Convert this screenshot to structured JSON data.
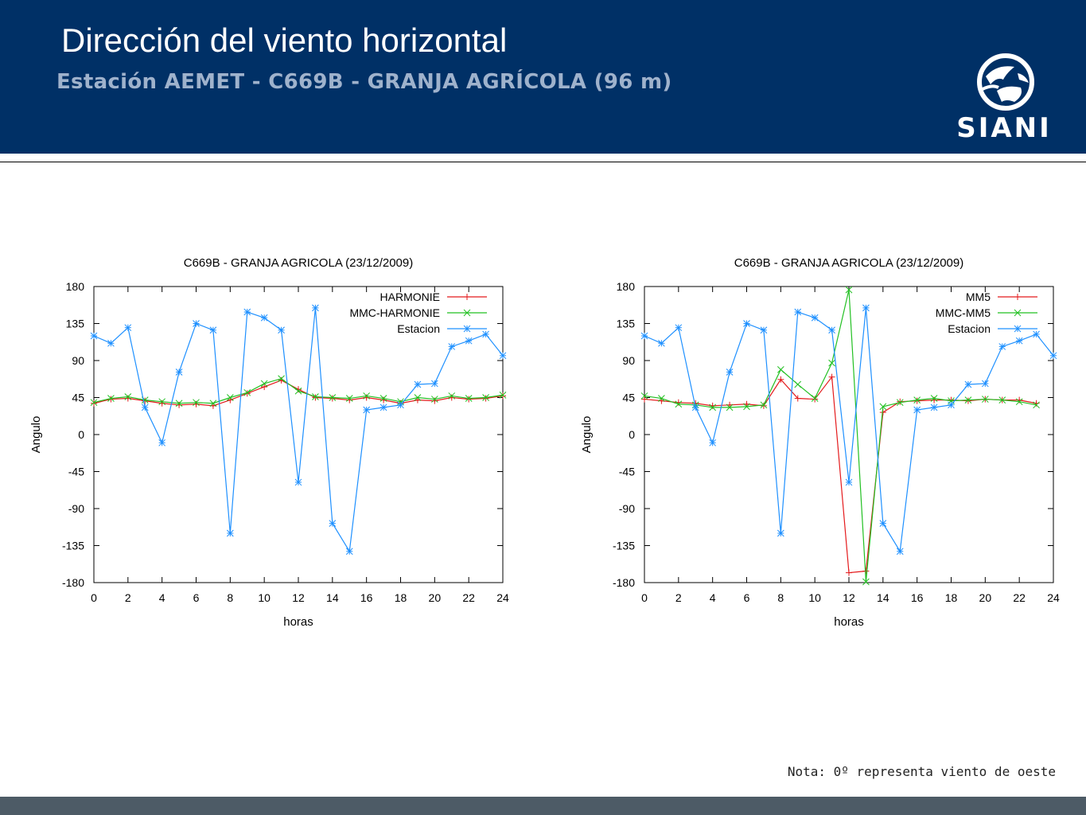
{
  "header": {
    "title": "Dirección del viento horizontal",
    "subtitle": "Estación AEMET - C669B - GRANJA AGRÍCOLA (96 m)",
    "logo_text": "SIANI",
    "background_color": "#003066"
  },
  "note": "Nota: 0º representa viento de oeste",
  "colors": {
    "red": "#e41a1c",
    "green": "#22c022",
    "blue": "#1e90ff",
    "footer": "#4d5b66"
  },
  "chart_data": [
    {
      "type": "line",
      "title": "C669B - GRANJA AGRICOLA (23/12/2009)",
      "xlabel": "horas",
      "ylabel": "Angulo",
      "xlim": [
        0,
        24
      ],
      "ylim": [
        -180,
        180
      ],
      "xticks": [
        0,
        2,
        4,
        6,
        8,
        10,
        12,
        14,
        16,
        18,
        20,
        22,
        24
      ],
      "yticks": [
        180,
        135,
        90,
        45,
        0,
        -45,
        -90,
        -135,
        -180
      ],
      "legend_position": "top-right",
      "grid": false,
      "series": [
        {
          "name": "HARMONIE",
          "color": "#e41a1c",
          "marker": "plus",
          "x": [
            0,
            1,
            2,
            3,
            4,
            5,
            6,
            7,
            8,
            9,
            10,
            11,
            12,
            13,
            14,
            15,
            16,
            17,
            18,
            19,
            20,
            21,
            22,
            23,
            24
          ],
          "y": [
            38,
            43,
            44,
            41,
            38,
            36,
            37,
            35,
            42,
            50,
            58,
            66,
            55,
            45,
            44,
            42,
            45,
            42,
            38,
            42,
            41,
            45,
            43,
            44,
            47
          ]
        },
        {
          "name": "MMC-HARMONIE",
          "color": "#22c022",
          "marker": "x",
          "x": [
            0,
            1,
            2,
            3,
            4,
            5,
            6,
            7,
            8,
            9,
            10,
            11,
            12,
            13,
            14,
            15,
            16,
            17,
            18,
            19,
            20,
            21,
            22,
            23,
            24
          ],
          "y": [
            39,
            44,
            46,
            42,
            40,
            38,
            39,
            38,
            45,
            51,
            62,
            68,
            53,
            46,
            45,
            44,
            47,
            44,
            40,
            45,
            43,
            47,
            44,
            45,
            48
          ]
        },
        {
          "name": "Estacion",
          "color": "#1e90ff",
          "marker": "star",
          "x": [
            0,
            1,
            2,
            3,
            4,
            5,
            6,
            7,
            8,
            9,
            10,
            11,
            12,
            13,
            14,
            15,
            16,
            17,
            18,
            19,
            20,
            21,
            22,
            23,
            24
          ],
          "y": [
            120,
            111,
            130,
            33,
            -10,
            76,
            135,
            127,
            -120,
            149,
            142,
            127,
            -58,
            154,
            -108,
            -142,
            30,
            33,
            36,
            61,
            62,
            107,
            114,
            122,
            96
          ]
        }
      ]
    },
    {
      "type": "line",
      "title": "C669B - GRANJA AGRICOLA (23/12/2009)",
      "xlabel": "horas",
      "ylabel": "Angulo",
      "xlim": [
        0,
        24
      ],
      "ylim": [
        -180,
        180
      ],
      "xticks": [
        0,
        2,
        4,
        6,
        8,
        10,
        12,
        14,
        16,
        18,
        20,
        22,
        24
      ],
      "yticks": [
        180,
        135,
        90,
        45,
        0,
        -45,
        -90,
        -135,
        -180
      ],
      "legend_position": "top-right",
      "grid": false,
      "series": [
        {
          "name": "MM5",
          "color": "#e41a1c",
          "marker": "plus",
          "x": [
            0,
            1,
            2,
            3,
            4,
            5,
            6,
            7,
            8,
            9,
            10,
            11,
            12,
            13,
            14,
            15,
            16,
            17,
            18,
            19,
            20,
            21,
            22,
            23
          ],
          "y": [
            43,
            41,
            39,
            38,
            35,
            36,
            37,
            35,
            67,
            44,
            43,
            70,
            -168,
            -166,
            27,
            40,
            41,
            42,
            42,
            41,
            43,
            42,
            42,
            38
          ]
        },
        {
          "name": "MMC-MM5",
          "color": "#22c022",
          "marker": "x",
          "x": [
            0,
            1,
            2,
            3,
            4,
            5,
            6,
            7,
            8,
            9,
            10,
            11,
            12,
            13,
            14,
            15,
            16,
            17,
            18,
            19,
            20,
            21,
            22,
            23
          ],
          "y": [
            47,
            44,
            37,
            36,
            33,
            33,
            34,
            36,
            79,
            61,
            44,
            87,
            176,
            -179,
            34,
            39,
            42,
            44,
            41,
            42,
            43,
            42,
            40,
            36
          ]
        },
        {
          "name": "Estacion",
          "color": "#1e90ff",
          "marker": "star",
          "x": [
            0,
            1,
            2,
            3,
            4,
            5,
            6,
            7,
            8,
            9,
            10,
            11,
            12,
            13,
            14,
            15,
            16,
            17,
            18,
            19,
            20,
            21,
            22,
            23,
            24
          ],
          "y": [
            120,
            111,
            130,
            33,
            -10,
            76,
            135,
            127,
            -120,
            149,
            142,
            127,
            -58,
            154,
            -108,
            -142,
            30,
            33,
            36,
            61,
            62,
            107,
            114,
            122,
            96
          ]
        }
      ]
    }
  ]
}
